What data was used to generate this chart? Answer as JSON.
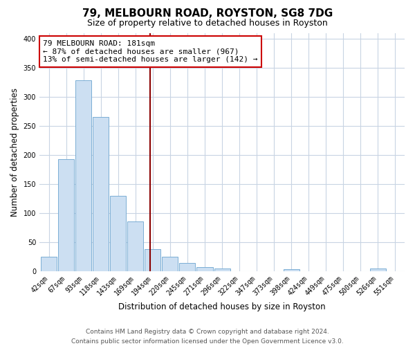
{
  "title": "79, MELBOURN ROAD, ROYSTON, SG8 7DG",
  "subtitle": "Size of property relative to detached houses in Royston",
  "xlabel": "Distribution of detached houses by size in Royston",
  "ylabel": "Number of detached properties",
  "bar_labels": [
    "42sqm",
    "67sqm",
    "93sqm",
    "118sqm",
    "143sqm",
    "169sqm",
    "194sqm",
    "220sqm",
    "245sqm",
    "271sqm",
    "296sqm",
    "322sqm",
    "347sqm",
    "373sqm",
    "398sqm",
    "424sqm",
    "449sqm",
    "475sqm",
    "500sqm",
    "526sqm",
    "551sqm"
  ],
  "bar_values": [
    25,
    193,
    328,
    265,
    130,
    86,
    38,
    25,
    14,
    7,
    4,
    0,
    0,
    0,
    3,
    0,
    0,
    0,
    0,
    4,
    0
  ],
  "bar_color": "#ccdff2",
  "bar_edge_color": "#7aadd4",
  "vline_color": "#8b0000",
  "vline_pos": 5.85,
  "ylim": [
    0,
    410
  ],
  "yticks": [
    0,
    50,
    100,
    150,
    200,
    250,
    300,
    350,
    400
  ],
  "annotation_text": "79 MELBOURN ROAD: 181sqm\n← 87% of detached houses are smaller (967)\n13% of semi-detached houses are larger (142) →",
  "annotation_box_color": "#ffffff",
  "annotation_box_edge": "#cc0000",
  "footer1": "Contains HM Land Registry data © Crown copyright and database right 2024.",
  "footer2": "Contains public sector information licensed under the Open Government Licence v3.0.",
  "bg_color": "#ffffff",
  "grid_color": "#c8d4e3",
  "title_fontsize": 11,
  "subtitle_fontsize": 9,
  "xlabel_fontsize": 8.5,
  "ylabel_fontsize": 8.5,
  "tick_fontsize": 7,
  "ann_fontsize": 8,
  "footer_fontsize": 6.5
}
